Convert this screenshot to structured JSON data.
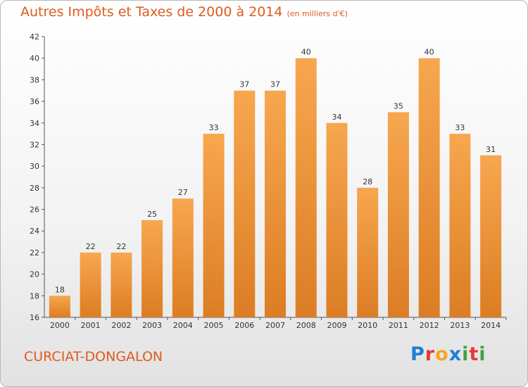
{
  "header": {
    "title": "Autres Impôts et Taxes de 2000 à 2014",
    "subtitle": "(en milliers d'€)"
  },
  "footer": {
    "commune": "CURCIAT-DONGALON",
    "brand_letters": [
      "P",
      "r",
      "o",
      "x",
      "i",
      "t",
      "i"
    ],
    "brand_colors": [
      "#1e7fd6",
      "#e53935",
      "#f5a623",
      "#1e7fd6",
      "#43a047",
      "#e53935",
      "#43a047"
    ]
  },
  "colors": {
    "bar_top": "#f7a74f",
    "bar_bottom": "#dc7d24",
    "accent_text": "#e05a1c"
  },
  "chart_data": {
    "type": "bar",
    "title": "Autres Impôts et Taxes de 2000 à 2014",
    "subtitle": "(en milliers d'€)",
    "categories": [
      "2000",
      "2001",
      "2002",
      "2003",
      "2004",
      "2005",
      "2006",
      "2007",
      "2008",
      "2009",
      "2010",
      "2011",
      "2012",
      "2013",
      "2014"
    ],
    "values": [
      18,
      22,
      22,
      25,
      27,
      33,
      37,
      37,
      40,
      34,
      28,
      35,
      40,
      33,
      31
    ],
    "ylim": [
      16,
      42
    ],
    "yticks": [
      16,
      18,
      20,
      22,
      24,
      26,
      28,
      30,
      32,
      34,
      36,
      38,
      40,
      42
    ],
    "grid": false,
    "data_labels": true
  }
}
